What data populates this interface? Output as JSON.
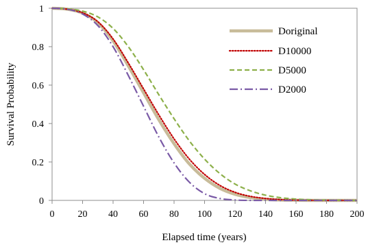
{
  "chart_data": {
    "type": "line",
    "title": "",
    "xlabel": "Elapsed time (years)",
    "ylabel": "Survival Probability",
    "xlim": [
      0,
      200
    ],
    "ylim": [
      0,
      1
    ],
    "xticks": [
      0,
      20,
      40,
      60,
      80,
      100,
      120,
      140,
      160,
      180,
      200
    ],
    "yticks": [
      0,
      0.2,
      0.4,
      0.6,
      0.8,
      1
    ],
    "ytick_labels": [
      "0",
      "0.2",
      "0.4",
      "0.6",
      "0.8",
      "1"
    ],
    "grid": false,
    "legend_position": "top-right",
    "x": [
      0,
      10,
      20,
      30,
      40,
      50,
      60,
      70,
      80,
      90,
      100,
      110,
      120,
      130,
      140,
      150,
      160,
      170,
      180,
      190,
      200
    ],
    "series": [
      {
        "name": "Doriginal",
        "color": "#C8BC9A",
        "style": "solid-thick",
        "values": [
          1.0,
          0.995,
          0.975,
          0.925,
          0.83,
          0.7,
          0.56,
          0.42,
          0.295,
          0.19,
          0.115,
          0.063,
          0.032,
          0.015,
          0.006,
          0.002,
          0.001,
          0.0,
          0.0,
          0.0,
          0.0
        ]
      },
      {
        "name": "D10000",
        "color": "#C00000",
        "style": "dotted",
        "values": [
          1.0,
          0.995,
          0.976,
          0.93,
          0.84,
          0.715,
          0.58,
          0.445,
          0.32,
          0.215,
          0.135,
          0.078,
          0.042,
          0.021,
          0.01,
          0.004,
          0.0015,
          0.0005,
          0.0,
          0.0,
          0.0
        ]
      },
      {
        "name": "D5000",
        "color": "#8DB04A",
        "style": "dashed",
        "values": [
          1.0,
          0.997,
          0.985,
          0.955,
          0.895,
          0.8,
          0.68,
          0.55,
          0.425,
          0.31,
          0.215,
          0.14,
          0.085,
          0.05,
          0.027,
          0.014,
          0.007,
          0.003,
          0.0012,
          0.0004,
          0.0
        ]
      },
      {
        "name": "D2000",
        "color": "#7A5AA6",
        "style": "dash-dot",
        "values": [
          1.0,
          0.995,
          0.97,
          0.91,
          0.8,
          0.65,
          0.49,
          0.33,
          0.195,
          0.095,
          0.035,
          0.01,
          0.002,
          0.0,
          0.0,
          0.0,
          0.0,
          0.0,
          0.0,
          0.0,
          0.0
        ]
      }
    ]
  }
}
